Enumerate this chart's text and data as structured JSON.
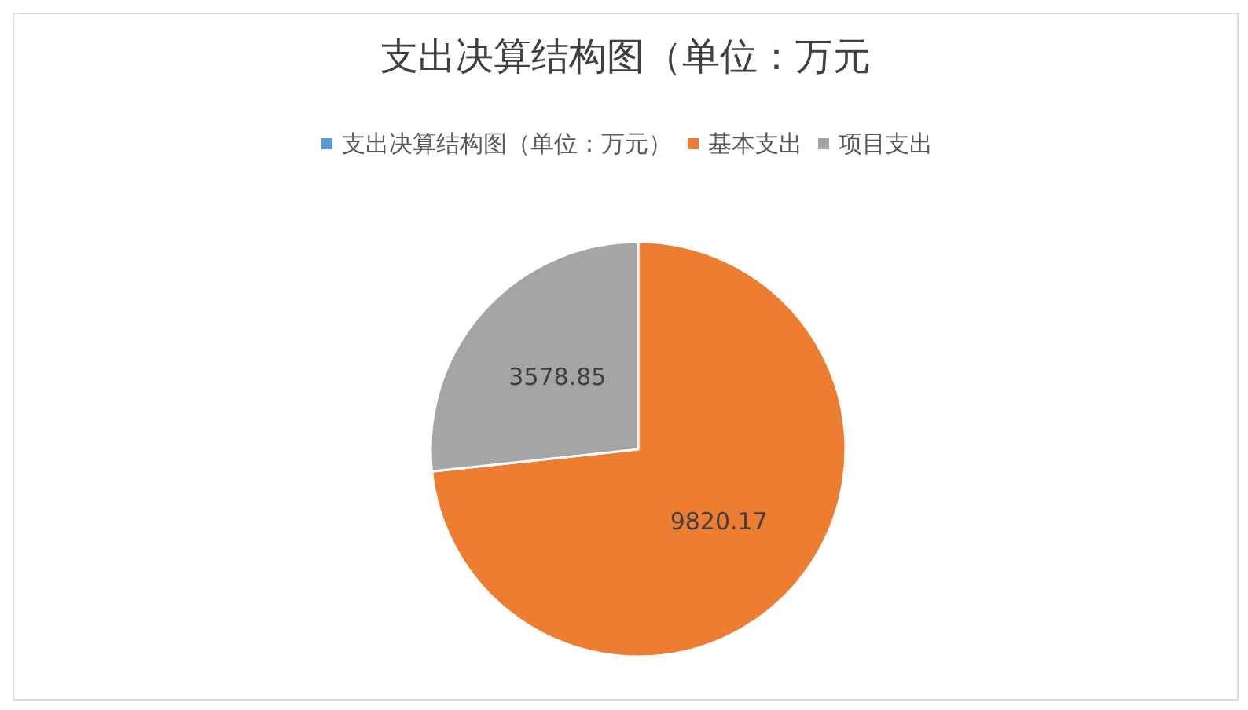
{
  "chart_data": {
    "type": "pie",
    "title": "支出决算结构图（单位：万元",
    "categories": [
      "支出决算结构图（单位：万元）",
      "基本支出",
      "项目支出"
    ],
    "values": [
      0,
      9820.17,
      3578.85
    ],
    "colors": [
      "#5b9bd5",
      "#ed7d31",
      "#a5a5a5"
    ],
    "value_labels": [
      null,
      "9820.17",
      "3578.85"
    ],
    "legend": "top"
  }
}
